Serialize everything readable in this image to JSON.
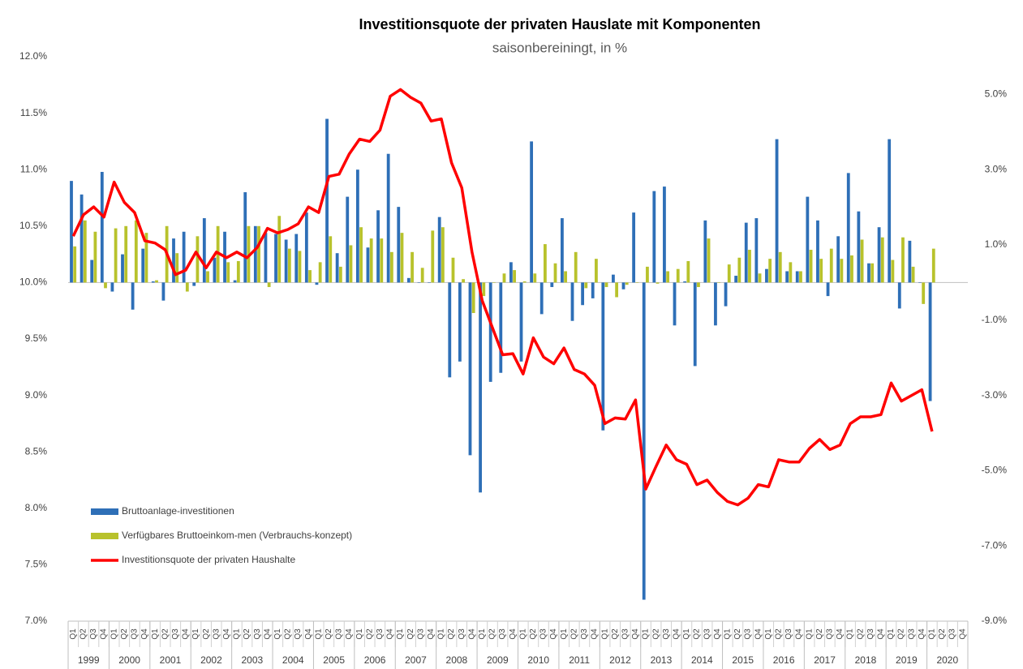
{
  "chart_data": {
    "type": "bar",
    "title": "Investitionsquote der privaten Hauslate mit Komponenten",
    "subtitle": "saisonbereiningt, in %",
    "categories": [
      "Q1",
      "Q2",
      "Q3",
      "Q4",
      "Q1",
      "Q2",
      "Q3",
      "Q4",
      "Q1",
      "Q2",
      "Q3",
      "Q4",
      "Q1",
      "Q2",
      "Q3",
      "Q4",
      "Q1",
      "Q2",
      "Q3",
      "Q4",
      "Q1",
      "Q2",
      "Q3",
      "Q4",
      "Q1",
      "Q2",
      "Q3",
      "Q4",
      "Q1",
      "Q2",
      "Q3",
      "Q4",
      "Q1",
      "Q2",
      "Q3",
      "Q4",
      "Q1",
      "Q2",
      "Q3",
      "Q4",
      "Q1",
      "Q2",
      "Q3",
      "Q4",
      "Q1",
      "Q2",
      "Q3",
      "Q4",
      "Q1",
      "Q2",
      "Q3",
      "Q4",
      "Q1",
      "Q2",
      "Q3",
      "Q4",
      "Q1",
      "Q2",
      "Q3",
      "Q4",
      "Q1",
      "Q2",
      "Q3",
      "Q4",
      "Q1",
      "Q2",
      "Q3",
      "Q4",
      "Q1",
      "Q2",
      "Q3",
      "Q4",
      "Q1",
      "Q2",
      "Q3",
      "Q4",
      "Q1",
      "Q2",
      "Q3",
      "Q4",
      "Q1",
      "Q2",
      "Q3",
      "Q4",
      "Q1",
      "Q2",
      "Q3",
      "Q4"
    ],
    "years": [
      "1999",
      "2000",
      "2001",
      "2002",
      "2003",
      "2004",
      "2005",
      "2006",
      "2007",
      "2008",
      "2009",
      "2010",
      "2011",
      "2012",
      "2013",
      "2014",
      "2015",
      "2016",
      "2017",
      "2018",
      "2019",
      "2020"
    ],
    "series": [
      {
        "name": "Bruttoanlage-investitionen",
        "type": "bar",
        "axis": "y2",
        "color": "#2e6fb7",
        "values": [
          2.7,
          2.34,
          0.6,
          2.94,
          -0.24,
          0.75,
          -0.72,
          0.9,
          0.03,
          -0.48,
          1.17,
          1.35,
          -0.09,
          1.71,
          0.66,
          1.35,
          0.06,
          2.4,
          1.5,
          1.32,
          1.29,
          1.14,
          1.29,
          1.86,
          -0.06,
          4.35,
          0.78,
          2.28,
          3.0,
          0.93,
          1.92,
          3.42,
          2.01,
          0.12,
          0.0,
          0.0,
          1.74,
          -2.52,
          -2.1,
          -4.59,
          -5.58,
          -2.64,
          -2.4,
          0.54,
          -2.1,
          3.75,
          -0.84,
          -0.12,
          1.71,
          -1.02,
          -0.6,
          -0.42,
          -3.93,
          0.21,
          -0.18,
          1.86,
          -8.43,
          2.43,
          2.55,
          -1.14,
          0.03,
          -2.22,
          1.65,
          -1.14,
          -0.63,
          0.18,
          1.59,
          1.71,
          0.36,
          3.81,
          0.3,
          0.3,
          2.28,
          1.65,
          -0.36,
          1.23,
          2.91,
          1.89,
          0.51,
          1.47,
          3.81,
          -0.69,
          1.11,
          0.0,
          -3.15,
          null,
          null,
          null
        ]
      },
      {
        "name": "Verfügbares Bruttoeinkom-men (Verbrauchs-konzept)",
        "type": "bar",
        "axis": "y2",
        "color": "#b8c22c",
        "values": [
          0.96,
          1.65,
          1.35,
          -0.15,
          1.44,
          1.5,
          1.65,
          1.32,
          0.06,
          1.5,
          0.78,
          -0.24,
          1.23,
          0.3,
          1.5,
          0.54,
          0.57,
          1.5,
          1.5,
          -0.12,
          1.77,
          0.9,
          0.84,
          0.33,
          0.54,
          1.23,
          0.42,
          0.99,
          1.47,
          1.17,
          1.17,
          0.81,
          1.32,
          0.81,
          0.39,
          1.38,
          1.47,
          0.66,
          0.09,
          -0.81,
          -0.36,
          0.0,
          0.24,
          0.33,
          0.03,
          0.24,
          1.02,
          0.51,
          0.3,
          0.81,
          -0.15,
          0.63,
          -0.12,
          -0.39,
          -0.06,
          0.0,
          0.42,
          -0.03,
          0.3,
          0.36,
          0.57,
          -0.12,
          1.17,
          0.0,
          0.48,
          0.66,
          0.87,
          0.24,
          0.63,
          0.81,
          0.54,
          0.3,
          0.87,
          0.63,
          0.9,
          0.63,
          0.72,
          1.14,
          0.51,
          1.2,
          0.6,
          1.2,
          0.42,
          -0.57,
          0.9,
          null,
          null,
          null
        ]
      },
      {
        "name": "Investitionsquote der privaten Haushalte",
        "type": "line",
        "axis": "y",
        "color": "#ff0000",
        "values": [
          10.41,
          10.6,
          10.67,
          10.58,
          10.89,
          10.71,
          10.62,
          10.37,
          10.35,
          10.29,
          10.07,
          10.11,
          10.27,
          10.13,
          10.27,
          10.22,
          10.27,
          10.22,
          10.31,
          10.48,
          10.44,
          10.47,
          10.52,
          10.67,
          10.62,
          10.94,
          10.96,
          11.14,
          11.27,
          11.25,
          11.35,
          11.65,
          11.71,
          11.64,
          11.59,
          11.43,
          11.45,
          11.06,
          10.84,
          10.27,
          9.84,
          9.6,
          9.36,
          9.37,
          9.19,
          9.51,
          9.34,
          9.28,
          9.42,
          9.23,
          9.19,
          9.09,
          8.75,
          8.8,
          8.79,
          8.96,
          8.17,
          8.37,
          8.56,
          8.43,
          8.39,
          8.21,
          8.25,
          8.14,
          8.06,
          8.03,
          8.09,
          8.21,
          8.19,
          8.43,
          8.41,
          8.41,
          8.53,
          8.61,
          8.52,
          8.56,
          8.75,
          8.81,
          8.81,
          8.83,
          9.11,
          8.95,
          9.0,
          9.05,
          8.68,
          null,
          null,
          null
        ]
      }
    ],
    "ylim": [
      7,
      12
    ],
    "yticks": [
      {
        "value": 7,
        "label": "7.0%"
      },
      {
        "value": 7.5,
        "label": "7.5%"
      },
      {
        "value": 8,
        "label": "8.0%"
      },
      {
        "value": 8.5,
        "label": "8.5%"
      },
      {
        "value": 9,
        "label": "9.0%"
      },
      {
        "value": 9.5,
        "label": "9.5%"
      },
      {
        "value": 10,
        "label": "10.0%"
      },
      {
        "value": 10.5,
        "label": "10.5%"
      },
      {
        "value": 11,
        "label": "11.0%"
      },
      {
        "value": 11.5,
        "label": "11.5%"
      },
      {
        "value": 12,
        "label": "12.0%"
      }
    ],
    "y2lim": [
      -9,
      6
    ],
    "y2ticks": [
      {
        "value": -9,
        "label": "-9.0%"
      },
      {
        "value": -7,
        "label": "-7.0%"
      },
      {
        "value": -5,
        "label": "-5.0%"
      },
      {
        "value": -3,
        "label": "-3.0%"
      },
      {
        "value": -1,
        "label": "-1.0%"
      },
      {
        "value": 1,
        "label": "1.0%"
      },
      {
        "value": 3,
        "label": "3.0%"
      },
      {
        "value": 5,
        "label": "5.0%"
      }
    ],
    "grid": false,
    "legend": "lower left"
  }
}
